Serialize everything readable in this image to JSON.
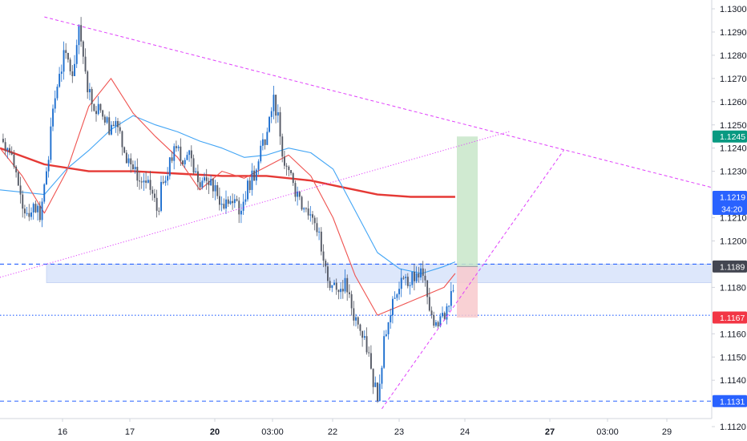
{
  "chart_data": {
    "type": "candlestick",
    "price_axis": {
      "ticks": [
        "1.1300",
        "1.1290",
        "1.1280",
        "1.1270",
        "1.1260",
        "1.1250",
        "1.1240",
        "1.1230",
        "1.1210",
        "1.1200",
        "1.1180",
        "1.1160",
        "1.1150",
        "1.1140",
        "1.1120"
      ],
      "range": [
        1.1117,
        1.1307
      ]
    },
    "time_axis": {
      "ticks": [
        "16",
        "17",
        "20",
        "03:00",
        "22",
        "23",
        "24",
        "27",
        "03:00",
        "29"
      ]
    },
    "price_labels": [
      {
        "name": "current",
        "value": "1.1219",
        "sub": "34:20",
        "color": "#2962ff"
      },
      {
        "name": "take-profit",
        "value": "1.1245",
        "color": "#089981"
      },
      {
        "name": "entry",
        "value": "1.1189",
        "color": "#434651"
      },
      {
        "name": "stop-loss",
        "value": "1.1167",
        "color": "#f23645"
      },
      {
        "name": "low-level",
        "value": "1.1131",
        "color": "#2962ff"
      }
    ],
    "horizontal_levels": [
      {
        "price": 1.119,
        "style": "dashed",
        "color": "#2962ff"
      },
      {
        "price": 1.1168,
        "style": "dotted",
        "color": "#2962ff"
      },
      {
        "price": 1.1131,
        "style": "dashed",
        "color": "#2962ff"
      }
    ],
    "support_zone": {
      "from": 1.1182,
      "to": 1.119,
      "color": "#dde7fb"
    },
    "trendlines": [
      {
        "name": "upper-resistance",
        "color": "#e040fb",
        "style": "dashed",
        "from": [
          2,
          1.12965
        ],
        "to": [
          33.5,
          1.12195
        ]
      },
      {
        "name": "rising-dotted",
        "color": "#e040fb",
        "style": "dotted",
        "from": [
          0,
          1.11843
        ],
        "to": [
          23,
          1.12473
        ]
      },
      {
        "name": "rising-support",
        "color": "#e040fb",
        "style": "dashed",
        "from": [
          17.2,
          1.11277
        ],
        "to": [
          25.4,
          1.12392
        ]
      }
    ],
    "position": {
      "entry": 1.1189,
      "target": 1.1245,
      "stop": 1.1167,
      "from_x": 20.6,
      "to_x": 21.4
    },
    "moving_averages": [
      {
        "name": "long-ma",
        "color": "#e53935",
        "width": 2.4,
        "points": [
          [
            0,
            1.124
          ],
          [
            2,
            1.1233
          ],
          [
            4,
            1.123
          ],
          [
            6,
            1.123
          ],
          [
            8,
            1.1229
          ],
          [
            10,
            1.1228
          ],
          [
            12,
            1.1228
          ],
          [
            14,
            1.1226
          ],
          [
            15.5,
            1.1223
          ],
          [
            17,
            1.122
          ],
          [
            18.5,
            1.1219
          ],
          [
            20,
            1.1219
          ],
          [
            20.5,
            1.1219
          ]
        ]
      },
      {
        "name": "mid-ma",
        "color": "#42a5f5",
        "width": 1.1,
        "points": [
          [
            0,
            1.1222
          ],
          [
            1,
            1.1221
          ],
          [
            2,
            1.122
          ],
          [
            3,
            1.1231
          ],
          [
            4,
            1.1239
          ],
          [
            5,
            1.1248
          ],
          [
            6,
            1.1254
          ],
          [
            7,
            1.125
          ],
          [
            8,
            1.1247
          ],
          [
            9,
            1.1243
          ],
          [
            10,
            1.124
          ],
          [
            11,
            1.1236
          ],
          [
            12,
            1.1237
          ],
          [
            13,
            1.124
          ],
          [
            14,
            1.1238
          ],
          [
            15,
            1.1231
          ],
          [
            16,
            1.1213
          ],
          [
            17,
            1.1195
          ],
          [
            18,
            1.1188
          ],
          [
            19,
            1.1186
          ],
          [
            20,
            1.1189
          ],
          [
            20.5,
            1.1191
          ]
        ]
      },
      {
        "name": "fast-ma",
        "color": "#ef5350",
        "width": 1.1,
        "points": [
          [
            0,
            1.124
          ],
          [
            1,
            1.1228
          ],
          [
            2,
            1.1212
          ],
          [
            3,
            1.123
          ],
          [
            4,
            1.1258
          ],
          [
            5,
            1.127
          ],
          [
            6,
            1.1255
          ],
          [
            7,
            1.1245
          ],
          [
            8,
            1.1236
          ],
          [
            9,
            1.1222
          ],
          [
            10,
            1.123
          ],
          [
            11,
            1.1227
          ],
          [
            12,
            1.1232
          ],
          [
            13,
            1.1237
          ],
          [
            14,
            1.1228
          ],
          [
            15,
            1.121
          ],
          [
            16,
            1.1185
          ],
          [
            17,
            1.1168
          ],
          [
            18,
            1.1172
          ],
          [
            19,
            1.1176
          ],
          [
            20,
            1.118
          ],
          [
            20.5,
            1.1186
          ]
        ]
      }
    ],
    "candles": {
      "up_color": "#1e6fcf",
      "down_color": "#555a66",
      "closes": [
        1.124,
        1.1232,
        1.122,
        1.1212,
        1.1216,
        1.1209,
        1.123,
        1.1257,
        1.1272,
        1.1281,
        1.1271,
        1.1293,
        1.1273,
        1.1259,
        1.1259,
        1.1251,
        1.125,
        1.1249,
        1.1238,
        1.1233,
        1.1226,
        1.1226,
        1.1222,
        1.1213,
        1.1225,
        1.1236,
        1.124,
        1.1233,
        1.1239,
        1.123,
        1.1226,
        1.1224,
        1.1224,
        1.1216,
        1.1216,
        1.1218,
        1.1213,
        1.1226,
        1.1226,
        1.1241,
        1.1247,
        1.1263,
        1.1245,
        1.1232,
        1.1225,
        1.1219,
        1.1214,
        1.121,
        1.1204,
        1.1189,
        1.1181,
        1.1178,
        1.1184,
        1.1171,
        1.1164,
        1.1159,
        1.1145,
        1.1131,
        1.1159,
        1.1168,
        1.1177,
        1.1184,
        1.1181,
        1.1186,
        1.1185,
        1.117,
        1.1165,
        1.1169,
        1.1172,
        1.1182,
        1.1199,
        1.1219
      ]
    }
  }
}
